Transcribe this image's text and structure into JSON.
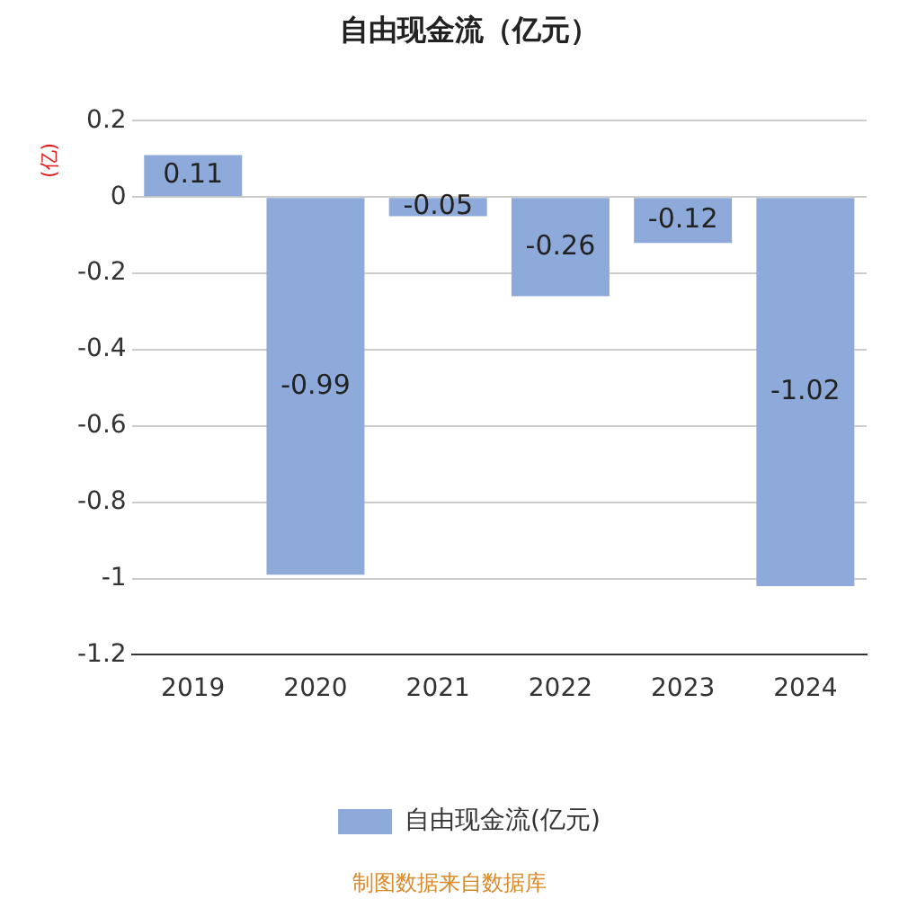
{
  "chart_data": {
    "type": "bar",
    "title": "自由现金流（亿元）",
    "ylabel": "(亿)",
    "categories": [
      "2019",
      "2020",
      "2021",
      "2022",
      "2023",
      "2024"
    ],
    "series": [
      {
        "name": "自由现金流(亿元)",
        "color": "#8eaadb",
        "values": [
          0.11,
          -0.99,
          -0.05,
          -0.26,
          -0.12,
          -1.02
        ]
      }
    ],
    "ylim": [
      -1.2,
      0.2
    ],
    "yticks": [
      0.2,
      0,
      -0.2,
      -0.4,
      -0.6,
      -0.8,
      -1,
      -1.2
    ],
    "grid": "y",
    "legend": "bottom",
    "data_labels": true,
    "annotations": [
      "制图数据来自数据库"
    ]
  }
}
